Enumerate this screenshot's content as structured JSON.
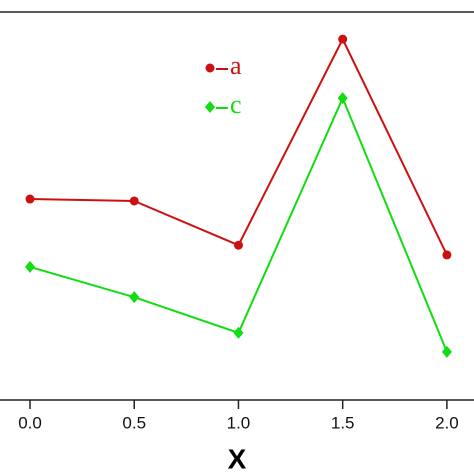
{
  "chart_data": {
    "type": "line",
    "xlabel": "X",
    "x": [
      0,
      0.5,
      1,
      1.5,
      2
    ],
    "series": [
      {
        "name": "a",
        "color": "#cc1111",
        "marker": "circle",
        "values": [
          51.8,
          51.3,
          39.9,
          93.0,
          37.4
        ]
      },
      {
        "name": "c",
        "color": "#11dd11",
        "marker": "diamond",
        "values": [
          34.3,
          26.5,
          17.3,
          77.8,
          12.4
        ]
      }
    ],
    "xlim": [
      -0.144,
      2.13
    ],
    "xticks": [
      {
        "value": 0,
        "label": "0.0"
      },
      0.5,
      {
        "value": 1,
        "label": "1.0"
      },
      1.5,
      {
        "value": 2,
        "label": "2.0"
      }
    ],
    "ylim": [
      0,
      100
    ]
  }
}
